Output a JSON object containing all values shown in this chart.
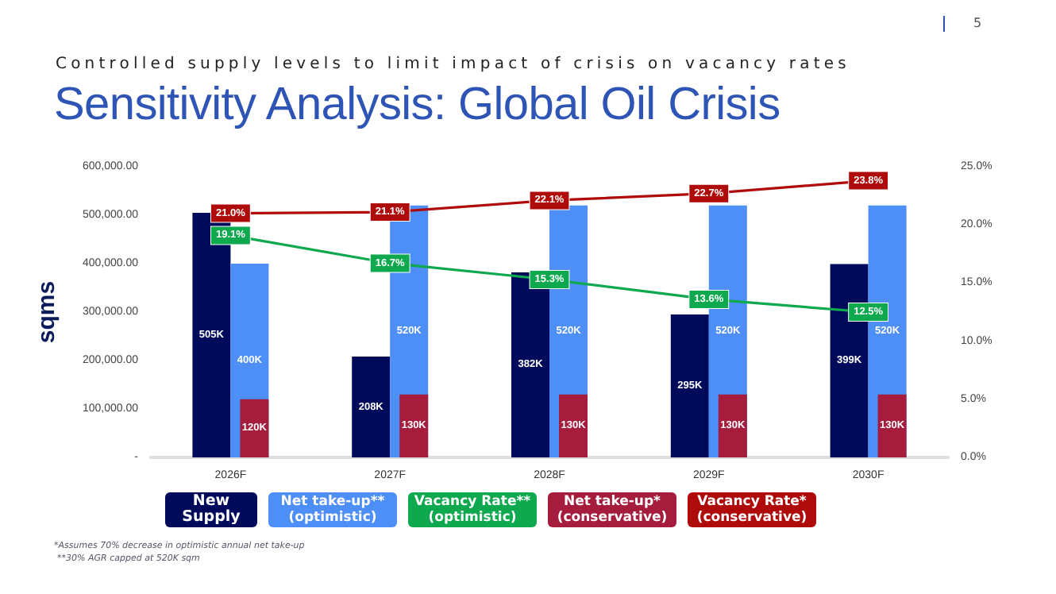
{
  "chart_data": {
    "type": "bar",
    "title": "Sensitivity Analysis: Global Oil Crisis",
    "subtitle": "Controlled supply levels to limit impact of crisis on vacancy rates",
    "ylabel": "sqms",
    "categories": [
      "2026F",
      "2027F",
      "2028F",
      "2029F",
      "2030F"
    ],
    "series": [
      {
        "name": "New Supply",
        "color": "#000a5a",
        "values": [
          505000,
          208000,
          382000,
          295000,
          399000
        ],
        "value_labels": [
          "505K",
          "208K",
          "382K",
          "295K",
          "399K"
        ]
      },
      {
        "name": "Net take-up** (optimistic)",
        "color": "#4d8ef7",
        "values": [
          400000,
          520000,
          520000,
          520000,
          520000
        ],
        "value_labels": [
          "400K",
          "520K",
          "520K",
          "520K",
          "520K"
        ]
      },
      {
        "name": "Net take-up* (conservative)",
        "color": "#a51c3c",
        "values": [
          120000,
          130000,
          130000,
          130000,
          130000
        ],
        "value_labels": [
          "120K",
          "130K",
          "130K",
          "130K",
          "130K"
        ]
      },
      {
        "name": "Vacancy Rate** (optimistic)",
        "type": "line",
        "axis": "y2",
        "color": "#0ea84e",
        "values": [
          19.1,
          16.7,
          15.3,
          13.6,
          12.5
        ],
        "value_labels": [
          "19.1%",
          "16.7%",
          "15.3%",
          "13.6%",
          "12.5%"
        ]
      },
      {
        "name": "Vacancy Rate* (conservative)",
        "type": "line",
        "axis": "y2",
        "color": "#b00b0b",
        "values": [
          21.0,
          21.1,
          22.1,
          22.7,
          23.8
        ],
        "value_labels": [
          "21.0%",
          "21.1%",
          "22.1%",
          "22.7%",
          "23.8%"
        ]
      }
    ],
    "ylim": [
      0,
      600000
    ],
    "yticks": [
      {
        "value": 0,
        "label": "-"
      },
      {
        "value": 100000,
        "label": "100,000.00"
      },
      {
        "value": 200000,
        "label": "200,000.00"
      },
      {
        "value": 300000,
        "label": "300,000.00"
      },
      {
        "value": 400000,
        "label": "400,000.00"
      },
      {
        "value": 500000,
        "label": "500,000.00"
      },
      {
        "value": 600000,
        "label": "600,000.00"
      }
    ],
    "y2lim": [
      0,
      25
    ],
    "y2ticks": [
      {
        "value": 0,
        "label": "0.0%"
      },
      {
        "value": 5,
        "label": "5.0%"
      },
      {
        "value": 10,
        "label": "10.0%"
      },
      {
        "value": 15,
        "label": "15.0%"
      },
      {
        "value": 20,
        "label": "20.0%"
      },
      {
        "value": 25,
        "label": "25.0%"
      }
    ],
    "grid": false,
    "legend": "bottom",
    "marker": "square",
    "line_style": "solid",
    "annotations": [
      "5",
      "*Assumes 70% decrease in optimistic annual net take-up",
      "**30% AGR capped at 520K sqm"
    ]
  }
}
